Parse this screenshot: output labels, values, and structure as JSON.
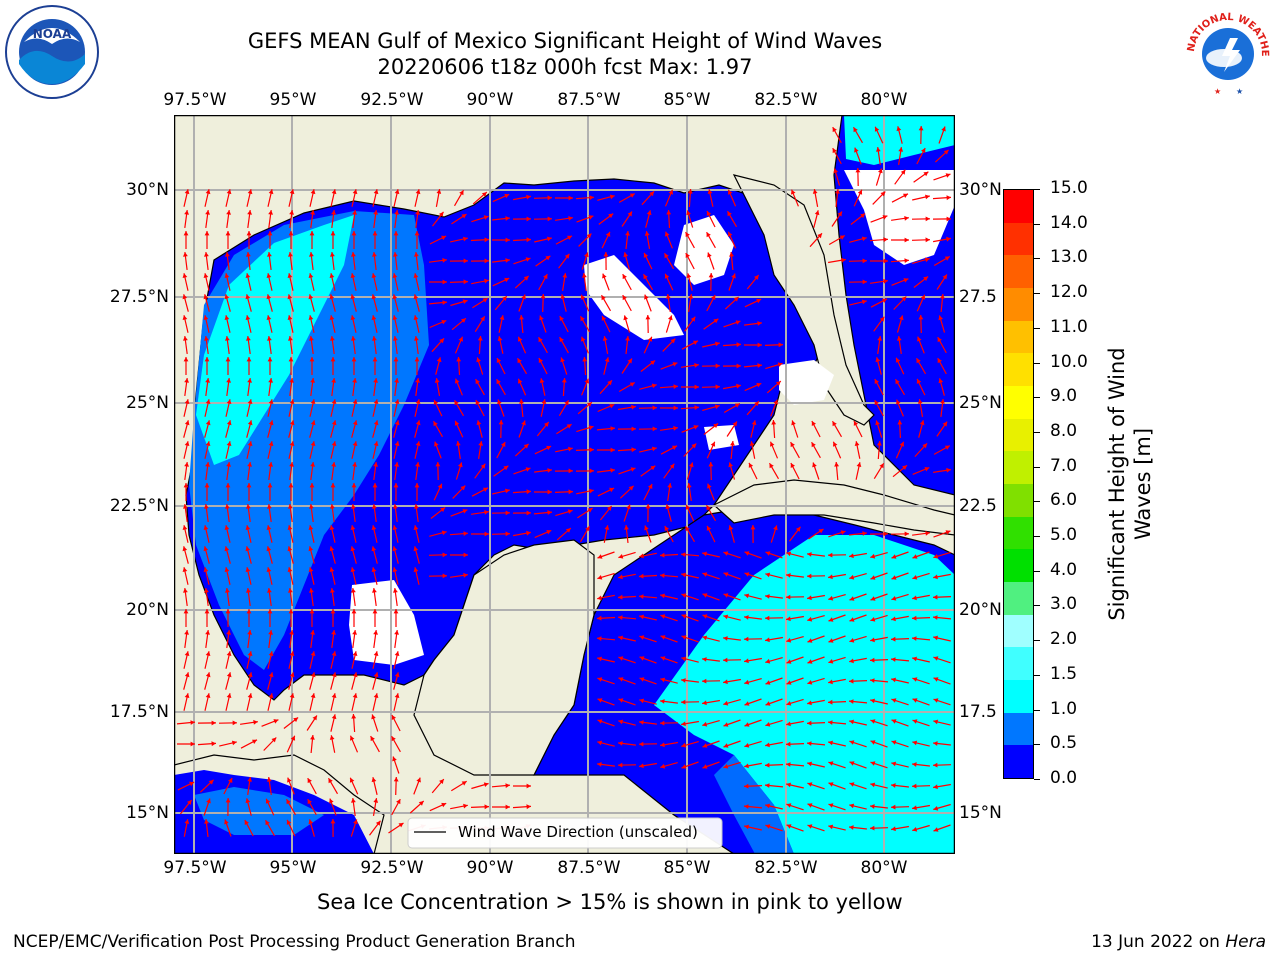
{
  "title_line1": "GEFS MEAN Gulf of Mexico Significant Height of Wind Waves",
  "title_line2": "20220606 t18z 000h fcst   Max: 1.97",
  "lon_ticks": [
    "97.5°W",
    "95°W",
    "92.5°W",
    "90°W",
    "87.5°W",
    "85°W",
    "82.5°W",
    "80°W"
  ],
  "lat_ticks": [
    "30°N",
    "27.5°N",
    "25°N",
    "22.5°N",
    "20°N",
    "17.5°N",
    "15°N"
  ],
  "lat_ticks_right": [
    "30°N",
    "27.5",
    "25°N",
    "22.5",
    "20°N",
    "17.5",
    "15°N"
  ],
  "legend_label": "Wind Wave Direction (unscaled)",
  "colorbar": {
    "label_line1": "Significant Height of Wind",
    "label_line2": "Waves [m]",
    "ticks": [
      "15.0",
      "14.0",
      "13.0",
      "12.0",
      "11.0",
      "10.0",
      "9.0",
      "8.0",
      "7.0",
      "6.0",
      "5.0",
      "4.0",
      "3.0",
      "2.0",
      "1.5",
      "1.0",
      "0.5",
      "0.0"
    ],
    "colors": [
      "#0000ff",
      "#0077ff",
      "#00ffff",
      "#40ffff",
      "#a0ffff",
      "#50f080",
      "#00e000",
      "#30e000",
      "#80e000",
      "#c0f000",
      "#e8f000",
      "#ffff00",
      "#ffe000",
      "#ffc000",
      "#ff8c00",
      "#ff6000",
      "#ff3000",
      "#ff0000"
    ]
  },
  "caption": "Sea Ice Concentration > 15% is shown in pink to yellow",
  "footer_left": "NCEP/EMC/Verification Post Processing Product Generation Branch",
  "footer_right_date": "13 Jun 2022 on ",
  "footer_right_host": "Hera",
  "logos": {
    "noaa": "NOAA",
    "nws": "NATIONAL WEATHER SERVICE"
  },
  "colors": {
    "land": "#efefdc",
    "sea_low": "#0000ff",
    "sea_mid": "#0077ff",
    "sea_high": "#00ffff",
    "arrow": "#ff0000",
    "grid": "#b0b0b0"
  }
}
